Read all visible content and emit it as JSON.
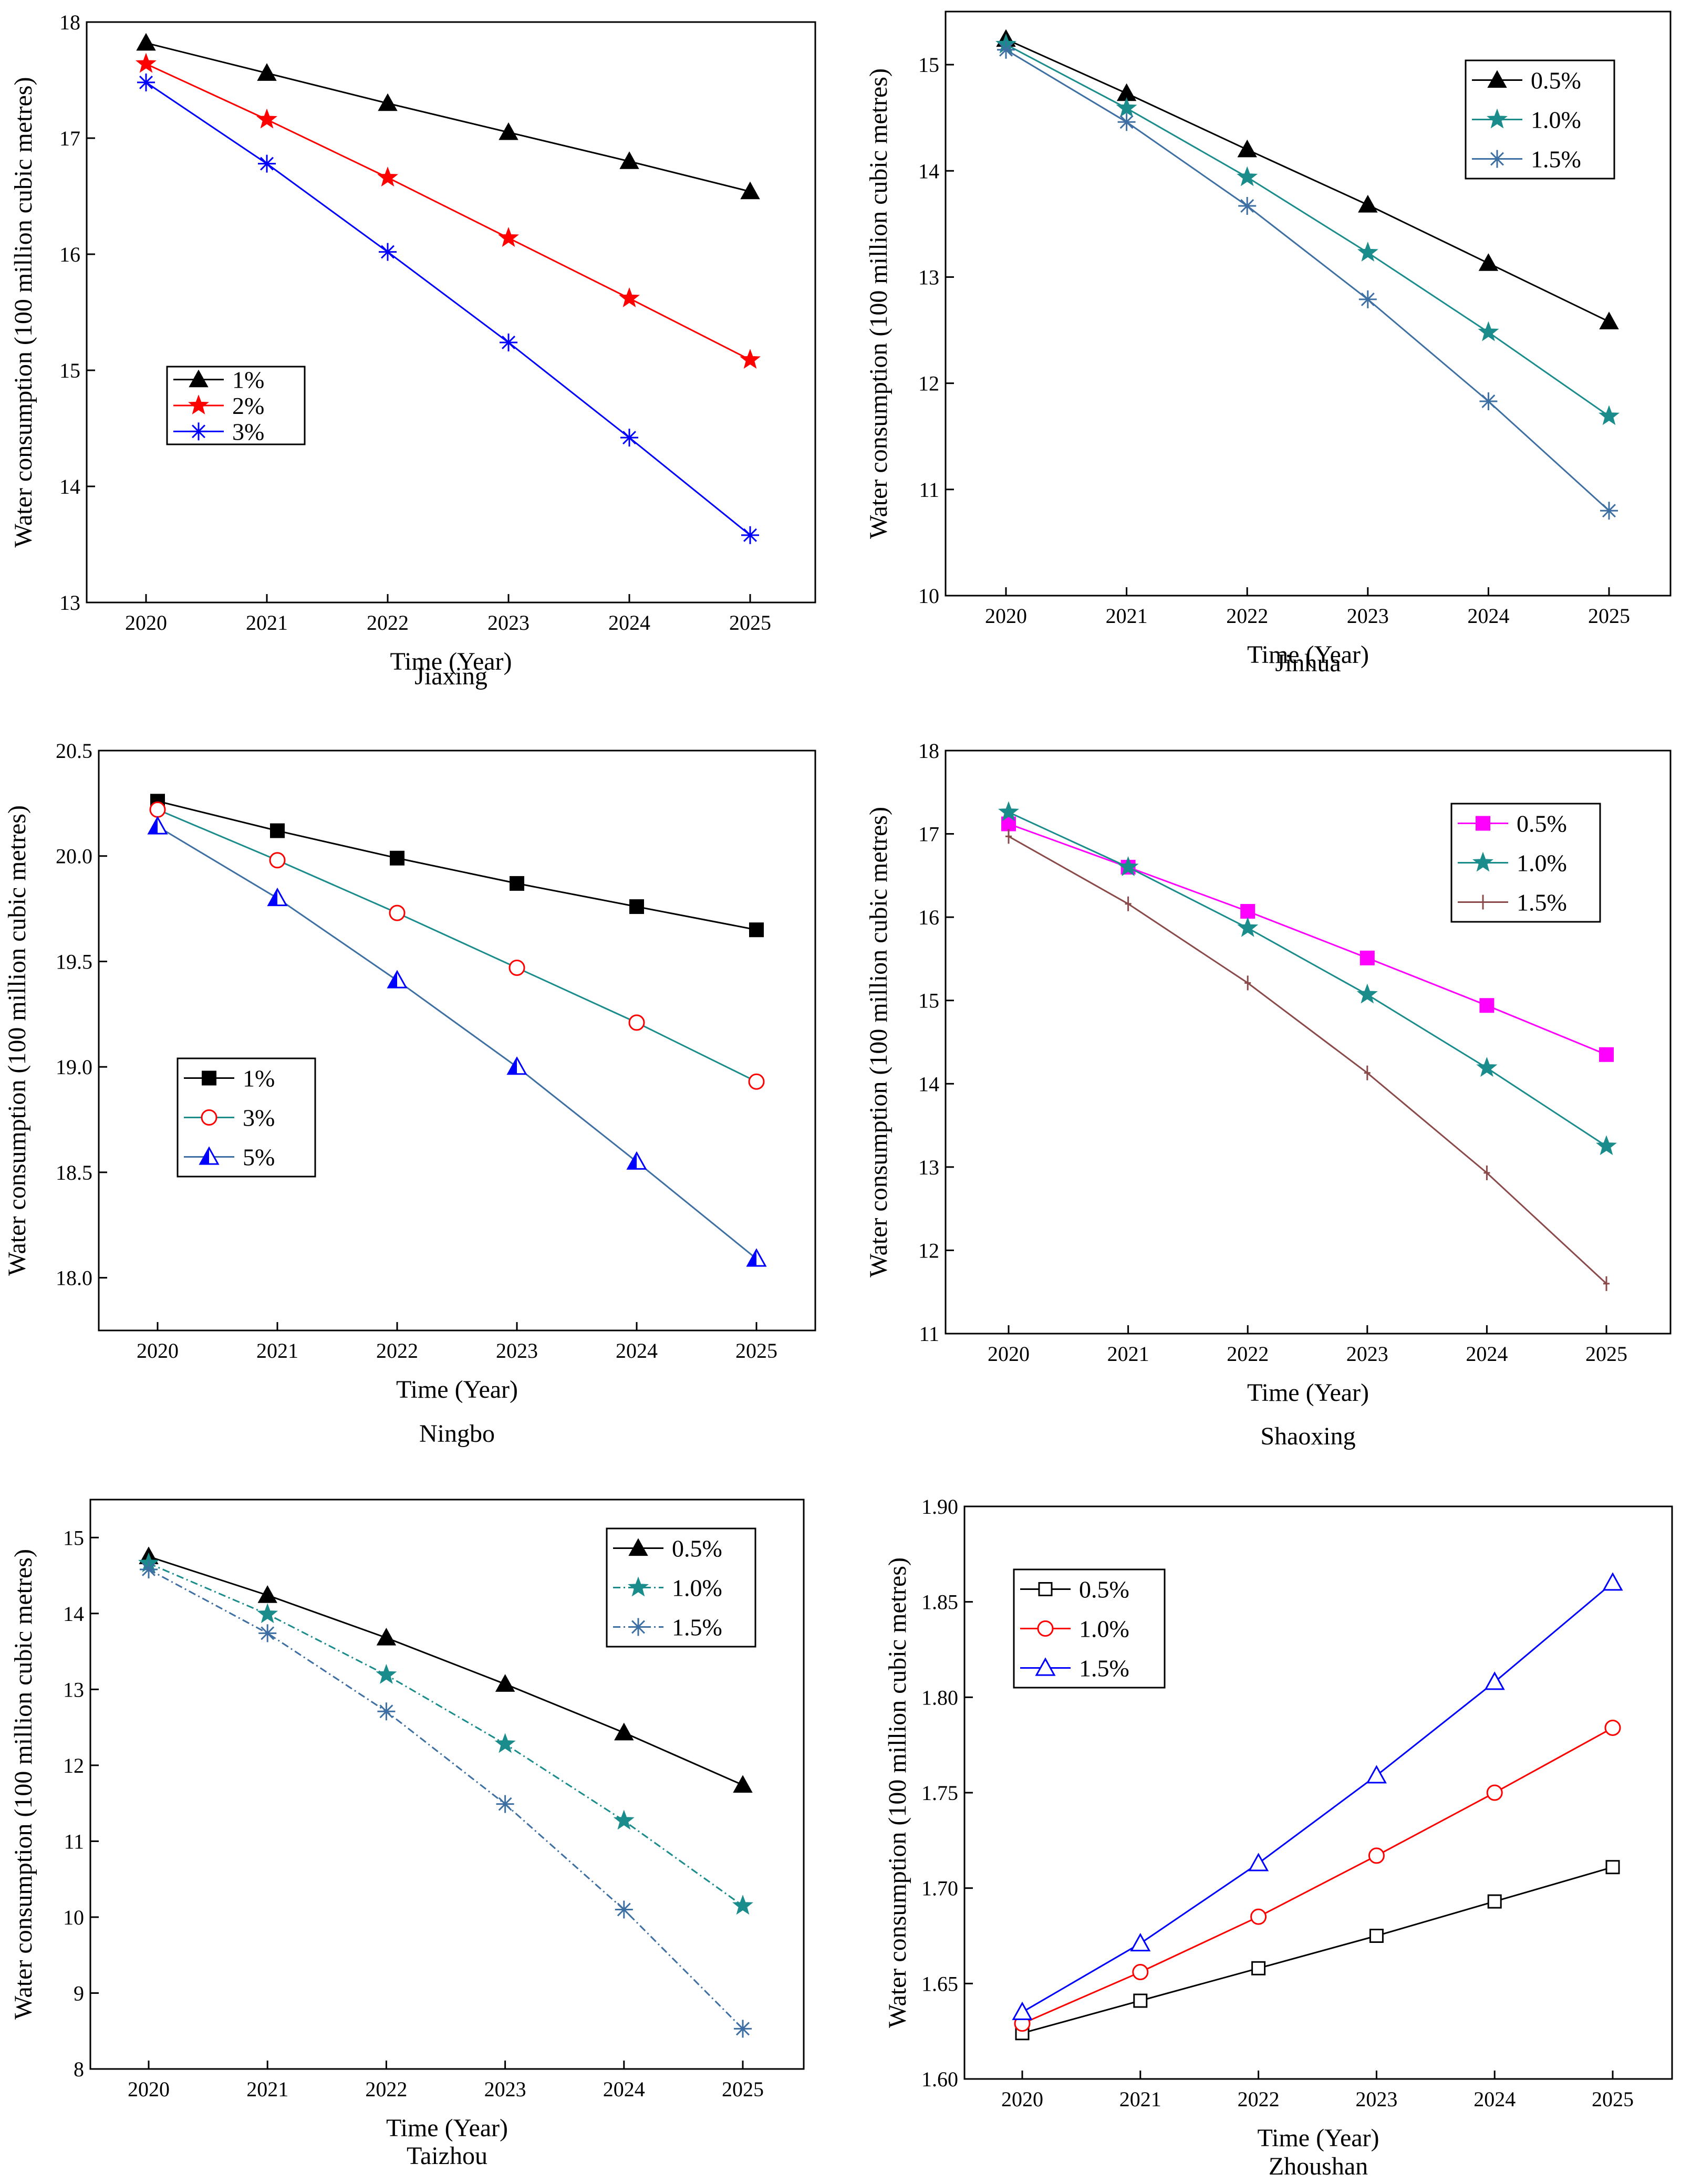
{
  "chart_data": [
    {
      "type": "line",
      "title": "Jiaxing",
      "xlabel": "Time (Year)",
      "ylabel": "Water consumption (100 million cubic metres)",
      "x": [
        2020,
        2021,
        2022,
        2023,
        2024,
        2025
      ],
      "x_tick_labels": [
        "2020",
        "2021",
        "2022",
        "2023",
        "2024",
        "2025"
      ],
      "ylim": [
        13,
        18
      ],
      "y_ticks": [
        13,
        14,
        15,
        16,
        17,
        18
      ],
      "y_tick_labels": [
        "13",
        "14",
        "15",
        "16",
        "17",
        "18"
      ],
      "legend_position": "center-left",
      "series": [
        {
          "name": "1%",
          "color": "#000000",
          "marker": "triangle-filled",
          "dash": "solid",
          "values": [
            17.82,
            17.56,
            17.3,
            17.05,
            16.8,
            16.54
          ]
        },
        {
          "name": "2%",
          "color": "#ff0000",
          "marker": "star-filled",
          "dash": "solid",
          "values": [
            17.64,
            17.16,
            16.66,
            16.14,
            15.62,
            15.09
          ]
        },
        {
          "name": "3%",
          "color": "#0000ff",
          "marker": "asterisk",
          "dash": "solid",
          "values": [
            17.48,
            16.78,
            16.02,
            15.24,
            14.42,
            13.58
          ]
        }
      ]
    },
    {
      "type": "line",
      "title": "Jinhua",
      "xlabel": "Time (Year)",
      "ylabel": "Water consumption (100 million cubic metres)",
      "x": [
        2020,
        2021,
        2022,
        2023,
        2024,
        2025
      ],
      "x_tick_labels": [
        "2020",
        "2021",
        "2022",
        "2023",
        "2024",
        "2025"
      ],
      "ylim": [
        10,
        15.5
      ],
      "y_ticks": [
        10,
        11,
        12,
        13,
        14,
        15
      ],
      "y_tick_labels": [
        "10",
        "11",
        "12",
        "13",
        "14",
        "15"
      ],
      "legend_position": "top-right",
      "series": [
        {
          "name": "0.5%",
          "color": "#000000",
          "marker": "triangle-filled",
          "dash": "solid",
          "values": [
            15.24,
            14.73,
            14.2,
            13.68,
            13.13,
            12.58
          ]
        },
        {
          "name": "1.0%",
          "color": "#1a8c8c",
          "marker": "star-filled",
          "dash": "solid",
          "values": [
            15.19,
            14.59,
            13.94,
            13.23,
            12.48,
            11.69
          ]
        },
        {
          "name": "1.5%",
          "color": "#3d6fa3",
          "marker": "asterisk",
          "dash": "solid",
          "values": [
            15.14,
            14.46,
            13.67,
            12.79,
            11.83,
            10.8
          ]
        }
      ]
    },
    {
      "type": "line",
      "title": "Ningbo",
      "xlabel": "Time (Year)",
      "ylabel": "Water consumption (100 million cubic metres)",
      "x": [
        2020,
        2021,
        2022,
        2023,
        2024,
        2025
      ],
      "x_tick_labels": [
        "2020",
        "2021",
        "2022",
        "2023",
        "2024",
        "2025"
      ],
      "ylim": [
        17.75,
        20.5
      ],
      "y_ticks": [
        18.0,
        18.5,
        19.0,
        19.5,
        20.0,
        20.5
      ],
      "y_tick_labels": [
        "18.0",
        "18.5",
        "19.0",
        "19.5",
        "20.0",
        "20.5"
      ],
      "legend_position": "center-left",
      "series": [
        {
          "name": "1%",
          "color": "#000000",
          "marker": "square-filled",
          "dash": "solid",
          "values": [
            20.26,
            20.12,
            19.99,
            19.87,
            19.76,
            19.65
          ]
        },
        {
          "name": "3%",
          "color": "#1a8c8c",
          "marker": "circle-open-red",
          "dash": "solid",
          "values": [
            20.22,
            19.98,
            19.73,
            19.47,
            19.21,
            18.93
          ]
        },
        {
          "name": "5%",
          "color": "#3d6fa3",
          "marker": "triangle-half-blue",
          "dash": "solid",
          "values": [
            20.14,
            19.8,
            19.41,
            19.0,
            18.55,
            18.09
          ]
        }
      ]
    },
    {
      "type": "line",
      "title": "Shaoxing",
      "xlabel": "Time (Year)",
      "ylabel": "Water consumption (100 million cubic metres)",
      "x": [
        2020,
        2021,
        2022,
        2023,
        2024,
        2025
      ],
      "x_tick_labels": [
        "2020",
        "2021",
        "2022",
        "2023",
        "2024",
        "2025"
      ],
      "ylim": [
        11,
        18
      ],
      "y_ticks": [
        11,
        12,
        13,
        14,
        15,
        16,
        17,
        18
      ],
      "y_tick_labels": [
        "11",
        "12",
        "13",
        "14",
        "15",
        "16",
        "17",
        "18"
      ],
      "legend_position": "top-right",
      "series": [
        {
          "name": "0.5%",
          "color": "#ff00ff",
          "marker": "square-filled",
          "dash": "solid",
          "values": [
            17.12,
            16.6,
            16.07,
            15.51,
            14.94,
            14.35
          ]
        },
        {
          "name": "1.0%",
          "color": "#1a8c8c",
          "marker": "star-filled",
          "dash": "solid",
          "values": [
            17.26,
            16.6,
            15.87,
            15.07,
            14.19,
            13.25
          ]
        },
        {
          "name": "1.5%",
          "color": "#8b4a4a",
          "marker": "plus",
          "dash": "solid",
          "values": [
            16.97,
            16.16,
            15.21,
            14.13,
            12.93,
            11.6
          ]
        }
      ]
    },
    {
      "type": "line",
      "title": "Taizhou",
      "xlabel": "Time (Year)",
      "ylabel": "Water consumption (100 million cubic metres)",
      "x": [
        2020,
        2021,
        2022,
        2023,
        2024,
        2025
      ],
      "x_tick_labels": [
        "2020",
        "2021",
        "2022",
        "2023",
        "2024",
        "2025"
      ],
      "ylim": [
        8,
        15.5
      ],
      "y_ticks": [
        8,
        9,
        10,
        11,
        12,
        13,
        14,
        15
      ],
      "y_tick_labels": [
        "8",
        "9",
        "10",
        "11",
        "12",
        "13",
        "14",
        "15"
      ],
      "legend_position": "top-right",
      "series": [
        {
          "name": "0.5%",
          "color": "#000000",
          "marker": "triangle-filled",
          "dash": "solid",
          "values": [
            14.75,
            14.24,
            13.68,
            13.07,
            12.43,
            11.74
          ]
        },
        {
          "name": "1.0%",
          "color": "#1a8c8c",
          "marker": "star-filled",
          "dash": "dashdot",
          "values": [
            14.66,
            13.99,
            13.19,
            12.28,
            11.27,
            10.15
          ]
        },
        {
          "name": "1.5%",
          "color": "#3d6fa3",
          "marker": "asterisk",
          "dash": "dashdot",
          "values": [
            14.58,
            13.74,
            12.71,
            11.49,
            10.1,
            8.53
          ]
        }
      ]
    },
    {
      "type": "line",
      "title": "Zhoushan",
      "xlabel": "Time (Year)",
      "ylabel": "Water consumption (100 million cubic metres)",
      "x": [
        2020,
        2021,
        2022,
        2023,
        2024,
        2025
      ],
      "x_tick_labels": [
        "2020",
        "2021",
        "2022",
        "2023",
        "2024",
        "2025"
      ],
      "ylim": [
        1.6,
        1.9
      ],
      "y_ticks": [
        1.6,
        1.65,
        1.7,
        1.75,
        1.8,
        1.85,
        1.9
      ],
      "y_tick_labels": [
        "1.60",
        "1.65",
        "1.70",
        "1.75",
        "1.80",
        "1.85",
        "1.90"
      ],
      "legend_position": "top-left",
      "series": [
        {
          "name": "0.5%",
          "color": "#000000",
          "marker": "square-open",
          "dash": "solid",
          "values": [
            1.624,
            1.641,
            1.658,
            1.675,
            1.693,
            1.711
          ]
        },
        {
          "name": "1.0%",
          "color": "#ff0000",
          "marker": "circle-open",
          "dash": "solid",
          "values": [
            1.629,
            1.656,
            1.685,
            1.717,
            1.75,
            1.784
          ]
        },
        {
          "name": "1.5%",
          "color": "#0000ff",
          "marker": "triangle-open",
          "dash": "solid",
          "values": [
            1.635,
            1.671,
            1.713,
            1.759,
            1.808,
            1.86
          ]
        }
      ]
    }
  ]
}
